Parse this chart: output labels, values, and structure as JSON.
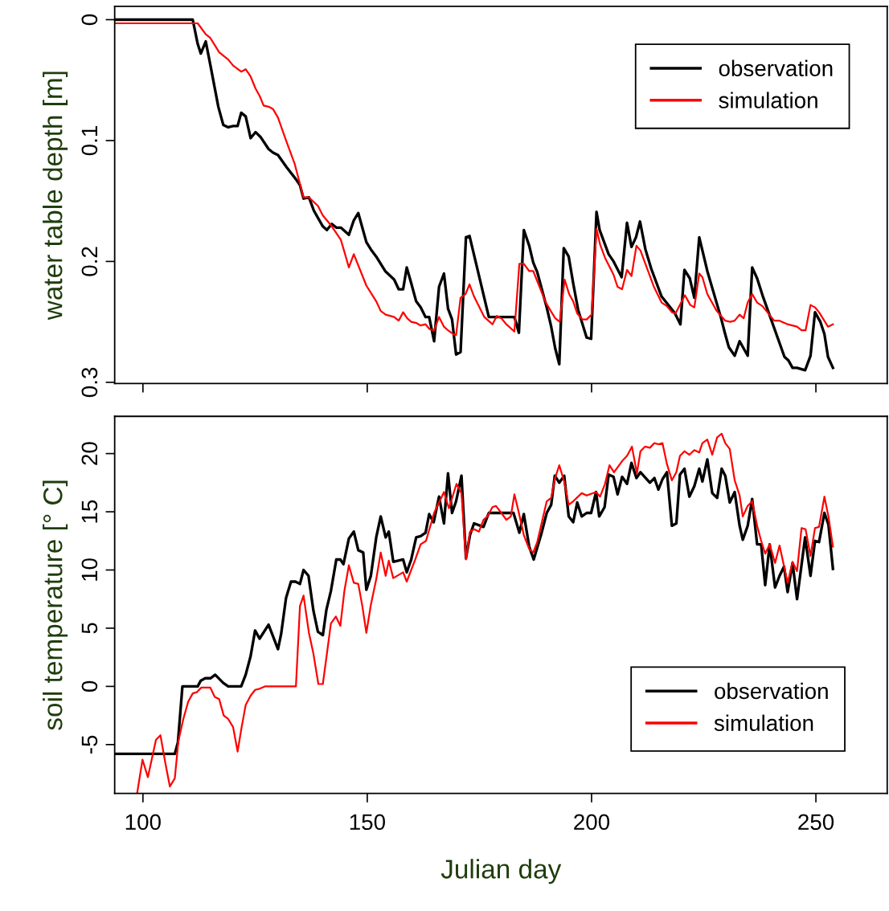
{
  "chart_data": [
    {
      "type": "line",
      "ylabel": "water table depth [m]",
      "xlim": [
        93.7,
        265.9
      ],
      "ylim": [
        0.301,
        -0.011
      ],
      "xticks": [
        100,
        150,
        200,
        250
      ],
      "yticks": [
        0,
        0.1,
        0.2,
        0.3
      ],
      "tick_labels": "y",
      "legend": "top right",
      "grid": false,
      "series": [
        {
          "name": "observation",
          "color": "#000000",
          "x": [
            93.7,
            111.1,
            112.2,
            112.9,
            114.0,
            115.0,
            116.8,
            117.9,
            119.0,
            120.1,
            121.1,
            121.9,
            122.9,
            124.0,
            125.1,
            126.2,
            128.0,
            129.0,
            130.1,
            132.0,
            134.1,
            135.0,
            135.8,
            137.0,
            138.1,
            140.1,
            141.0,
            142.1,
            143.1,
            144.1,
            145.9,
            147.0,
            148.0,
            149.8,
            150.8,
            152.0,
            154.0,
            156.0,
            157.0,
            158.0,
            158.8,
            159.8,
            160.9,
            161.9,
            163.0,
            163.8,
            164.9,
            166.0,
            167.1,
            168.0,
            168.9,
            169.8,
            170.8,
            172.0,
            172.8,
            177.1,
            182.8,
            183.8,
            184.9,
            186.1,
            187.0,
            187.9,
            190.0,
            191.0,
            191.9,
            192.8,
            193.8,
            194.9,
            195.9,
            197.0,
            198.9,
            199.9,
            201.1,
            201.8,
            203.8,
            204.9,
            206.7,
            207.9,
            208.9,
            209.9,
            210.8,
            212.0,
            213.3,
            215.6,
            218.6,
            219.8,
            220.7,
            221.9,
            222.9,
            224.0,
            225.8,
            228.8,
            229.7,
            230.6,
            231.9,
            233.0,
            234.8,
            235.8,
            236.9,
            238.1,
            243.0,
            243.9,
            244.8,
            245.8,
            247.6,
            248.8,
            249.8,
            251.0,
            251.9,
            252.7,
            253.8
          ],
          "values": [
            0,
            0,
            0.02,
            0.028,
            0.018,
            0.037,
            0.072,
            0.087,
            0.089,
            0.088,
            0.088,
            0.077,
            0.08,
            0.098,
            0.093,
            0.097,
            0.107,
            0.11,
            0.112,
            0.122,
            0.132,
            0.137,
            0.148,
            0.147,
            0.158,
            0.171,
            0.174,
            0.169,
            0.172,
            0.172,
            0.178,
            0.166,
            0.16,
            0.184,
            0.19,
            0.196,
            0.208,
            0.215,
            0.223,
            0.223,
            0.205,
            0.218,
            0.233,
            0.238,
            0.246,
            0.246,
            0.266,
            0.221,
            0.21,
            0.239,
            0.248,
            0.277,
            0.275,
            0.18,
            0.179,
            0.246,
            0.246,
            0.259,
            0.174,
            0.187,
            0.201,
            0.209,
            0.238,
            0.254,
            0.272,
            0.285,
            0.189,
            0.196,
            0.218,
            0.24,
            0.263,
            0.264,
            0.159,
            0.174,
            0.194,
            0.2,
            0.213,
            0.168,
            0.188,
            0.18,
            0.167,
            0.19,
            0.206,
            0.229,
            0.243,
            0.252,
            0.207,
            0.214,
            0.23,
            0.18,
            0.208,
            0.246,
            0.259,
            0.271,
            0.278,
            0.266,
            0.278,
            0.205,
            0.214,
            0.228,
            0.279,
            0.282,
            0.288,
            0.288,
            0.29,
            0.278,
            0.242,
            0.25,
            0.26,
            0.279,
            0.288
          ]
        },
        {
          "name": "simulation",
          "color": "#ff0000",
          "x": [
            93.7,
            112.2,
            114.0,
            115.0,
            117.0,
            119.0,
            120.1,
            121.9,
            122.9,
            124.0,
            125.1,
            126.0,
            126.9,
            128.0,
            129.0,
            130.1,
            132.0,
            133.8,
            135.8,
            137.0,
            139.0,
            140.1,
            141.0,
            142.1,
            144.1,
            144.9,
            145.9,
            147.0,
            149.8,
            152.0,
            153.0,
            154.1,
            156.0,
            157.0,
            158.0,
            158.9,
            159.8,
            161.0,
            161.9,
            163.0,
            163.9,
            164.9,
            166.0,
            167.1,
            168.0,
            169.1,
            169.8,
            170.8,
            171.9,
            172.8,
            173.8,
            176.1,
            177.9,
            178.9,
            179.9,
            181.0,
            182.8,
            183.9,
            184.9,
            186.1,
            187.0,
            189.8,
            190.9,
            191.9,
            192.9,
            194.0,
            195.0,
            195.9,
            196.8,
            198.0,
            198.9,
            200.0,
            201.1,
            201.9,
            203.0,
            204.9,
            205.8,
            206.8,
            207.9,
            208.9,
            210.0,
            210.9,
            213.9,
            215.6,
            216.8,
            217.9,
            218.7,
            220.8,
            222.0,
            222.9,
            224.0,
            224.7,
            225.8,
            227.9,
            229.8,
            230.9,
            231.9,
            233.0,
            233.9,
            234.8,
            235.8,
            236.9,
            238.1,
            240.7,
            241.9,
            243.7,
            245.8,
            246.8,
            247.7,
            248.8,
            249.8,
            250.7,
            252.7,
            253.8
          ],
          "values": [
            0.003,
            0.003,
            0.012,
            0.015,
            0.027,
            0.033,
            0.038,
            0.043,
            0.041,
            0.047,
            0.057,
            0.063,
            0.071,
            0.072,
            0.074,
            0.081,
            0.101,
            0.119,
            0.147,
            0.147,
            0.154,
            0.162,
            0.166,
            0.171,
            0.182,
            0.192,
            0.205,
            0.194,
            0.22,
            0.233,
            0.241,
            0.244,
            0.246,
            0.249,
            0.242,
            0.247,
            0.25,
            0.251,
            0.253,
            0.252,
            0.256,
            0.257,
            0.246,
            0.254,
            0.257,
            0.26,
            0.261,
            0.23,
            0.227,
            0.219,
            0.229,
            0.246,
            0.252,
            0.245,
            0.247,
            0.252,
            0.258,
            0.202,
            0.202,
            0.208,
            0.208,
            0.234,
            0.241,
            0.247,
            0.25,
            0.215,
            0.227,
            0.233,
            0.243,
            0.248,
            0.248,
            0.244,
            0.173,
            0.186,
            0.197,
            0.211,
            0.221,
            0.223,
            0.207,
            0.212,
            0.187,
            0.191,
            0.221,
            0.234,
            0.237,
            0.242,
            0.243,
            0.228,
            0.236,
            0.238,
            0.21,
            0.213,
            0.227,
            0.241,
            0.249,
            0.25,
            0.249,
            0.244,
            0.247,
            0.234,
            0.227,
            0.234,
            0.237,
            0.249,
            0.249,
            0.252,
            0.254,
            0.257,
            0.257,
            0.236,
            0.238,
            0.242,
            0.254,
            0.252
          ]
        }
      ]
    },
    {
      "type": "line",
      "xlabel": "Julian day",
      "ylabel": "soil temperature [° C]",
      "xlim": [
        93.7,
        265.9
      ],
      "ylim": [
        -9.2,
        23.2
      ],
      "xticks": [
        100,
        150,
        200,
        250
      ],
      "yticks": [
        -5,
        0,
        5,
        10,
        15,
        20
      ],
      "legend": "bottom right",
      "grid": false,
      "series": [
        {
          "name": "observation",
          "color": "#000000",
          "x": [
            93.7,
            107.1,
            107.8,
            108.8,
            112.2,
            112.9,
            113.9,
            115.1,
            116.1,
            117.9,
            119.0,
            121.9,
            122.9,
            124.0,
            125.0,
            126.0,
            128.0,
            130.1,
            130.8,
            131.9,
            133.0,
            134.0,
            135.0,
            135.8,
            136.9,
            138.0,
            139.0,
            140.1,
            140.9,
            141.9,
            143.1,
            144.0,
            144.7,
            145.9,
            147.0,
            148.0,
            149.1,
            149.8,
            150.8,
            152.0,
            153.0,
            154.1,
            154.8,
            155.8,
            158.0,
            158.8,
            159.8,
            160.9,
            161.9,
            163.0,
            163.8,
            164.8,
            166.0,
            167.1,
            168.0,
            168.9,
            169.8,
            171.0,
            172.0,
            172.9,
            173.8,
            175.9,
            177.1,
            182.6,
            183.9,
            184.9,
            186.1,
            187.1,
            188.8,
            190.0,
            191.0,
            191.8,
            192.8,
            193.9,
            194.9,
            195.9,
            196.8,
            197.8,
            198.9,
            199.9,
            201.0,
            201.7,
            202.9,
            203.8,
            204.9,
            205.8,
            206.8,
            207.9,
            208.9,
            210.0,
            210.9,
            213.0,
            214.0,
            214.9,
            215.8,
            216.8,
            217.9,
            218.9,
            219.7,
            220.7,
            221.8,
            222.9,
            224.0,
            224.7,
            225.8,
            226.9,
            228.0,
            229.0,
            229.8,
            230.8,
            231.9,
            233.0,
            233.7,
            234.8,
            235.8,
            236.9,
            237.8,
            238.7,
            239.7,
            240.9,
            241.9,
            242.9,
            243.7,
            244.8,
            245.8,
            247.6,
            248.8,
            249.8,
            250.7,
            251.9,
            252.8,
            253.8
          ],
          "values": [
            -5.8,
            -5.8,
            -4.8,
            0,
            0,
            0.5,
            0.7,
            0.7,
            1.0,
            0.3,
            0,
            0,
            1.0,
            2.6,
            4.8,
            4.1,
            5.3,
            3.2,
            4.5,
            7.6,
            9.0,
            9.0,
            8.8,
            10.0,
            9.5,
            6.5,
            4.7,
            4.4,
            6.6,
            8.2,
            10.9,
            10.9,
            10.5,
            12.7,
            13.3,
            11.7,
            11.5,
            8.3,
            9.5,
            12.8,
            14.6,
            12.8,
            13.3,
            10.7,
            10.9,
            9.8,
            10.9,
            12.8,
            12.9,
            13.2,
            14.8,
            14.1,
            16.3,
            14.0,
            18.3,
            14.9,
            15.9,
            18.1,
            11.0,
            13.0,
            14.0,
            13.7,
            14.9,
            14.9,
            13.2,
            14.8,
            12.0,
            10.9,
            13.1,
            14.9,
            15.6,
            18.1,
            17.5,
            18.1,
            14.6,
            14.1,
            15.8,
            14.6,
            14.9,
            14.9,
            16.7,
            14.6,
            15.4,
            18.2,
            18.0,
            16.5,
            18.0,
            17.4,
            19.2,
            17.9,
            18.4,
            17.5,
            17.9,
            16.9,
            17.8,
            18.4,
            13.8,
            14.0,
            18.2,
            18.7,
            16.3,
            17.2,
            18.7,
            17.6,
            19.5,
            16.6,
            16.2,
            18.7,
            18.1,
            15.8,
            16.7,
            13.8,
            12.6,
            13.8,
            16.1,
            12.2,
            12.2,
            8.7,
            12.2,
            8.5,
            9.5,
            10.3,
            8.1,
            10.6,
            7.5,
            12.8,
            9.5,
            12.5,
            12.4,
            14.9,
            13.9,
            10.1
          ]
        },
        {
          "name": "simulation",
          "color": "#ff0000",
          "x": [
            98.7,
            99.9,
            101.1,
            102.9,
            103.9,
            105.0,
            106.0,
            107.1,
            107.9,
            109.0,
            110.1,
            111.1,
            112.0,
            113.0,
            115.0,
            116.0,
            117.0,
            118.0,
            119.0,
            120.1,
            121.1,
            122.0,
            122.9,
            124.0,
            125.0,
            126.0,
            127.2,
            134.1,
            135.0,
            135.8,
            137.0,
            138.0,
            139.1,
            140.1,
            141.0,
            141.9,
            143.0,
            144.0,
            144.9,
            145.9,
            147.0,
            148.0,
            148.9,
            149.8,
            150.8,
            152.0,
            153.0,
            154.1,
            154.8,
            155.8,
            158.0,
            158.8,
            160.7,
            161.9,
            163.1,
            164.9,
            167.1,
            168.2,
            169.9,
            171.0,
            172.0,
            172.9,
            173.8,
            174.9,
            175.9,
            176.8,
            177.9,
            178.7,
            179.9,
            181.0,
            182.0,
            182.8,
            183.8,
            184.9,
            186.1,
            187.0,
            187.9,
            190.0,
            191.0,
            191.8,
            192.8,
            193.9,
            194.9,
            195.9,
            197.8,
            198.9,
            201.0,
            201.9,
            203.0,
            204.0,
            205.0,
            206.9,
            207.9,
            209.0,
            210.1,
            210.9,
            211.9,
            213.0,
            214.0,
            214.9,
            215.8,
            216.8,
            217.9,
            218.9,
            219.7,
            220.7,
            221.8,
            222.9,
            224.0,
            224.7,
            225.8,
            226.9,
            228.0,
            229.0,
            229.8,
            230.8,
            231.9,
            233.0,
            233.7,
            234.8,
            235.8,
            236.9,
            237.8,
            238.7,
            239.7,
            240.9,
            241.9,
            243.7,
            244.8,
            245.8,
            246.8,
            247.7,
            248.8,
            249.8,
            250.7,
            251.9,
            252.8,
            253.8
          ],
          "values": [
            -9.2,
            -6.3,
            -7.8,
            -4.6,
            -4.2,
            -6.6,
            -8.6,
            -7.9,
            -4.7,
            -2.8,
            -1.3,
            -0.6,
            -0.5,
            -0.1,
            -0.1,
            -0.9,
            -1.1,
            -2.5,
            -2.8,
            -3.5,
            -5.6,
            -3.5,
            -1.6,
            -0.8,
            -0.3,
            -0.2,
            0,
            0,
            6.9,
            7.8,
            4.6,
            2.8,
            0.2,
            0.2,
            2.8,
            5.4,
            6.0,
            5.2,
            8.2,
            10.4,
            8.9,
            8.8,
            6.9,
            4.6,
            7.0,
            9.2,
            11.5,
            9.5,
            10.8,
            9.3,
            9.8,
            9.0,
            10.9,
            12.2,
            12.5,
            14.9,
            16.7,
            15.3,
            17.4,
            16.6,
            10.9,
            13.3,
            13.5,
            13.3,
            14.3,
            14.6,
            15.4,
            15.5,
            14.9,
            14.3,
            14.6,
            16.5,
            14.9,
            13.0,
            11.8,
            11.5,
            12.4,
            15.9,
            16.2,
            17.8,
            19.0,
            17.6,
            15.6,
            15.9,
            16.6,
            16.4,
            16.7,
            16.3,
            17.4,
            19.0,
            18.4,
            19.4,
            19.8,
            20.6,
            18.3,
            20.2,
            20.6,
            20.5,
            20.9,
            20.8,
            20.9,
            19.1,
            17.7,
            18.4,
            19.8,
            20.2,
            19.9,
            20.3,
            20.1,
            20.9,
            21.2,
            19.9,
            21.4,
            21.7,
            20.9,
            20.4,
            17.7,
            16.4,
            14.6,
            15.5,
            15.9,
            13.8,
            12.5,
            11.4,
            12.2,
            10.6,
            12.1,
            8.9,
            10.7,
            9.9,
            13.6,
            13.5,
            11.2,
            13.6,
            13.7,
            16.3,
            14.6,
            12.0
          ]
        }
      ]
    }
  ]
}
